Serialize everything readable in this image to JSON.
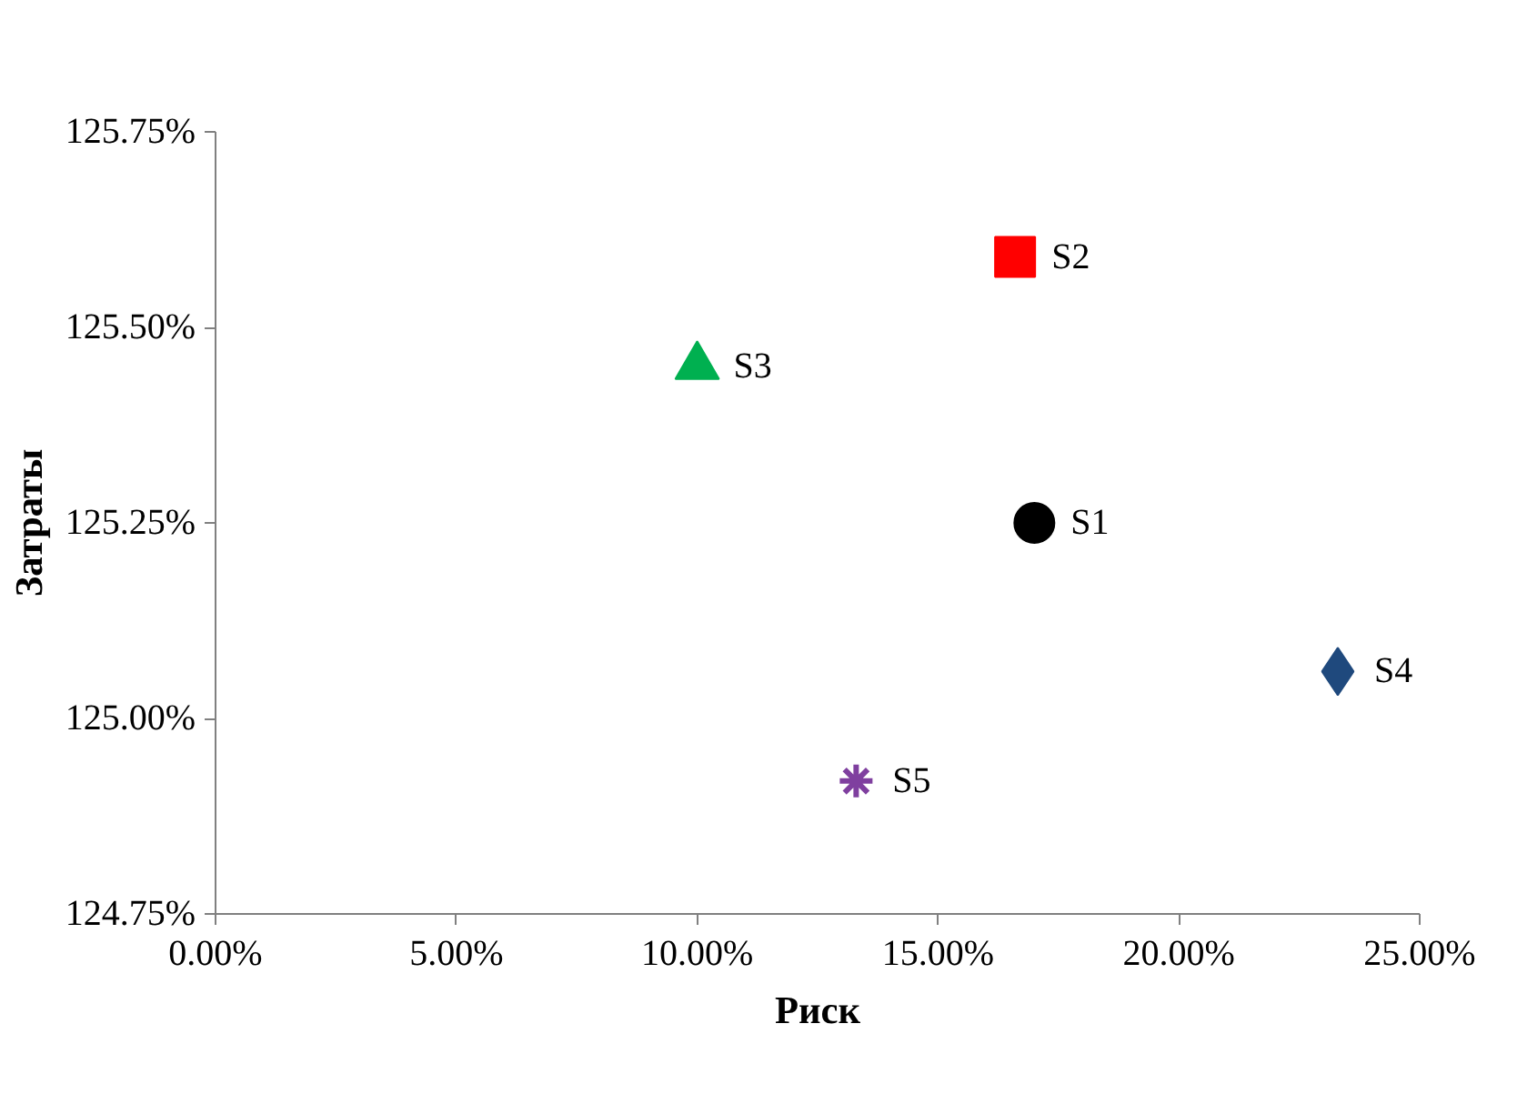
{
  "chart_data": {
    "type": "scatter",
    "xlabel": "Риск",
    "ylabel": "Затраты",
    "xlim": [
      0,
      25
    ],
    "ylim": [
      124.75,
      125.75
    ],
    "xticks": [
      {
        "value": 0,
        "label": "0.00%"
      },
      {
        "value": 5,
        "label": "5.00%"
      },
      {
        "value": 10,
        "label": "10.00%"
      },
      {
        "value": 15,
        "label": "15.00%"
      },
      {
        "value": 20,
        "label": "20.00%"
      },
      {
        "value": 25,
        "label": "25.00%"
      }
    ],
    "yticks": [
      {
        "value": 124.75,
        "label": "124.75%"
      },
      {
        "value": 125,
        "label": "125.00%"
      },
      {
        "value": 125.25,
        "label": "125.25%"
      },
      {
        "value": 125.5,
        "label": "125.50%"
      },
      {
        "value": 125.75,
        "label": "125.75%"
      }
    ],
    "grid": false,
    "series": [
      {
        "name": "S1",
        "color": "#000000",
        "marker": "circle",
        "x": [
          17
        ],
        "values": [
          125.25
        ]
      },
      {
        "name": "S2",
        "color": "#ff0000",
        "marker": "square",
        "x": [
          16.6
        ],
        "values": [
          125.59
        ]
      },
      {
        "name": "S3",
        "color": "#00b050",
        "marker": "triangle",
        "x": [
          10
        ],
        "values": [
          125.45
        ]
      },
      {
        "name": "S4",
        "color": "#1f497d",
        "marker": "diamond",
        "x": [
          23.3
        ],
        "values": [
          125.06
        ]
      },
      {
        "name": "S5",
        "color": "#7f3f9f",
        "marker": "cross",
        "x": [
          13.3
        ],
        "values": [
          124.92
        ]
      }
    ]
  }
}
